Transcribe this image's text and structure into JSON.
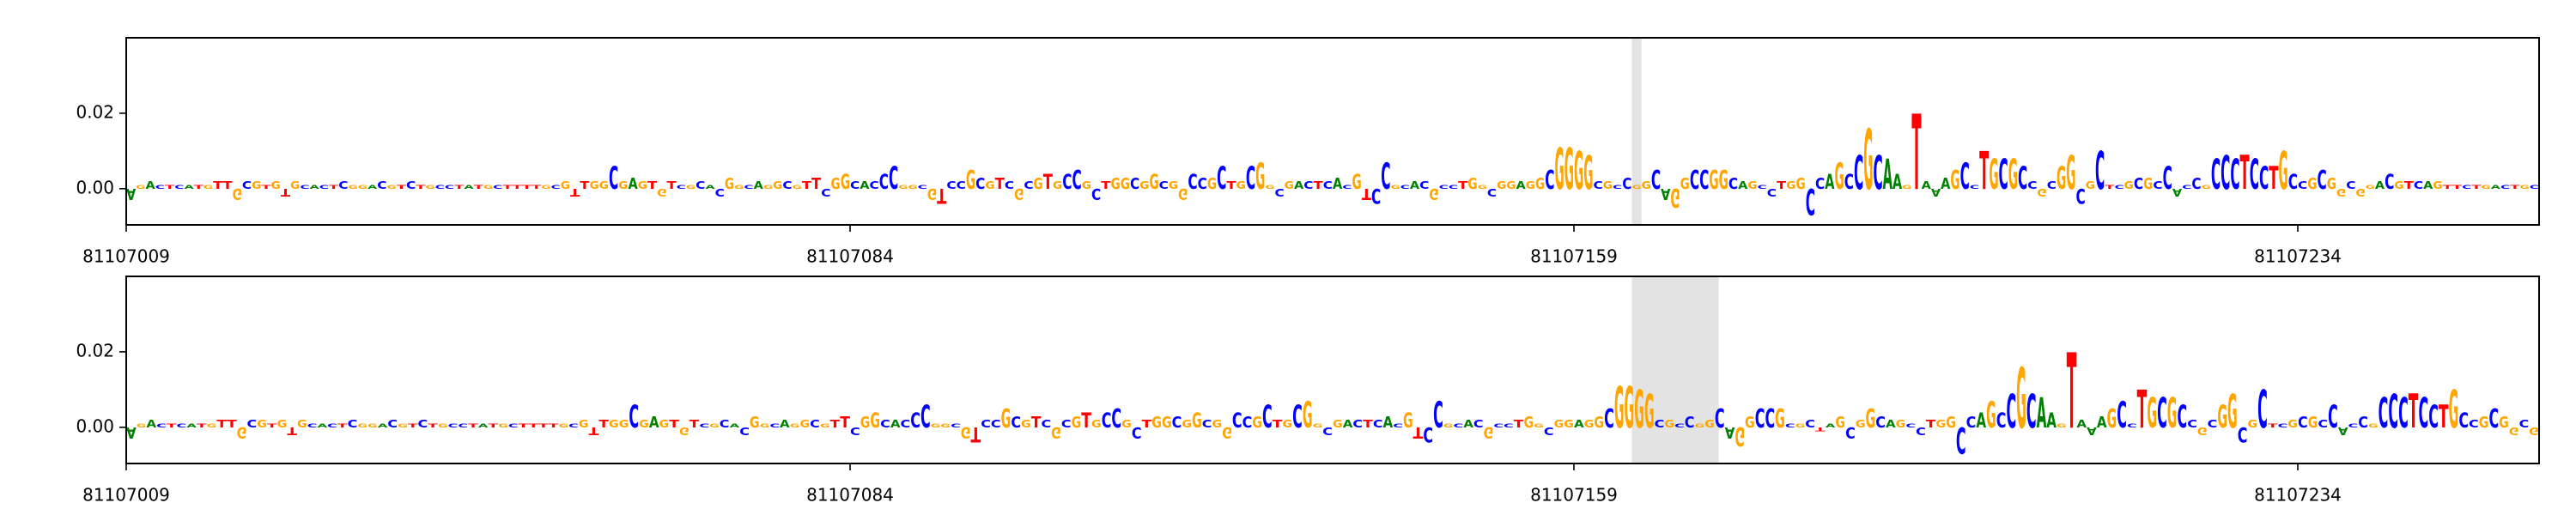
{
  "chart_data": [
    {
      "type": "logo",
      "sequence": "AGACTCATGTTGCGTGTGCACTCGGACGTCTGCCTATGCTTTTGCGTTGGCGAGTGTCGCACGGCAGGCGTTCGGCACCCGGCGTCCGCGTCGCGTGCCGCTGGCGGCGGCCGCTGCGGCGACTCACGTCCGCACGCCTGGCGGAGGCGGGGCGCCGGCAGGCCGGCAGCCTGGCCAGCCGCAAGTAAAGCCTGCGCCGCGGCGCTCGCGCCACCGCCCTCCTGCCGCGGCGGACGTCAGTTCTGACTGC",
      "values": [
        -0.003,
        0.001,
        0.002,
        0.001,
        0.001,
        0.001,
        0.001,
        0.001,
        0.001,
        0.002,
        0.002,
        -0.003,
        0.002,
        0.002,
        0.001,
        0.002,
        -0.002,
        0.002,
        0.001,
        0.001,
        0.001,
        0.001,
        0.002,
        0.001,
        0.001,
        0.001,
        0.002,
        0.001,
        0.001,
        0.002,
        0.001,
        0.001,
        0.001,
        0.001,
        0.001,
        0.001,
        0.001,
        0.001,
        0.001,
        0.001,
        0.001,
        0.001,
        0.001,
        0.001,
        0.001,
        0.002,
        -0.002,
        0.002,
        0.002,
        0.002,
        0.006,
        0.002,
        0.003,
        0.002,
        0.002,
        -0.002,
        0.002,
        0.001,
        0.001,
        0.002,
        0.001,
        -0.002,
        0.003,
        0.001,
        0.001,
        0.002,
        0.001,
        0.002,
        0.002,
        0.001,
        0.002,
        0.003,
        -0.002,
        0.003,
        0.004,
        0.002,
        0.002,
        0.002,
        0.004,
        0.006,
        0.001,
        0.001,
        0.001,
        -0.003,
        -0.004,
        0.002,
        0.002,
        0.005,
        0.003,
        0.002,
        0.003,
        0.002,
        -0.003,
        0.002,
        0.003,
        0.004,
        0.002,
        0.004,
        0.005,
        0.002,
        -0.003,
        0.002,
        0.003,
        0.003,
        0.003,
        0.002,
        0.004,
        0.002,
        0.002,
        -0.003,
        0.004,
        0.003,
        0.003,
        0.006,
        0.002,
        0.002,
        0.006,
        0.007,
        0.001,
        -0.002,
        0.002,
        0.002,
        0.002,
        0.002,
        0.002,
        0.003,
        0.001,
        0.004,
        -0.003,
        -0.004,
        0.007,
        0.001,
        0.001,
        0.002,
        0.002,
        -0.003,
        0.001,
        0.001,
        0.002,
        0.003,
        0.001,
        -0.002,
        0.002,
        0.002,
        0.002,
        0.002,
        0.003,
        0.005,
        0.011,
        0.011,
        0.01,
        0.009,
        0.002,
        0.002,
        0.001,
        0.003,
        0.001,
        0.002,
        0.005,
        -0.003,
        -0.005,
        0.003,
        0.005,
        0.005,
        0.005,
        0.005,
        0.003,
        0.002,
        0.002,
        0.001,
        -0.002,
        0.002,
        0.002,
        0.003,
        -0.007,
        0.003,
        0.004,
        0.007,
        0.004,
        0.009,
        0.016,
        0.009,
        0.008,
        0.004,
        0.001,
        0.02,
        0.002,
        -0.002,
        0.003,
        0.005,
        0.007,
        0.001,
        0.01,
        0.008,
        0.008,
        0.008,
        0.006,
        0.002,
        -0.002,
        0.002,
        0.006,
        0.009,
        -0.004,
        0.002,
        0.01,
        0.001,
        0.001,
        0.002,
        0.003,
        0.003,
        0.002,
        0.006,
        -0.002,
        0.001,
        0.003,
        0.001,
        0.008,
        0.009,
        0.008,
        0.009,
        0.008,
        0.006,
        0.006,
        0.01,
        0.004,
        0.002,
        0.003,
        0.005,
        0.003,
        -0.002,
        0.002,
        -0.002,
        0.001,
        0.002,
        0.004,
        0.002,
        0.002,
        0.002,
        0.002,
        0.002,
        0.001,
        0.001,
        0.001,
        0.001,
        0.001,
        0.001,
        0.001,
        0.001,
        0.001,
        0.001
      ],
      "highlight": [
        81107165,
        81107166
      ],
      "colors": {
        "A": "#008000",
        "C": "#0000ff",
        "G": "#ffa500",
        "T": "#ff0000"
      },
      "xlim": [
        81107009,
        81107259
      ],
      "xticks": [
        81107009,
        81107084,
        81107159,
        81107234
      ],
      "ylim": [
        -0.0096,
        0.04
      ],
      "yticks": [
        {
          "value": 0,
          "label": "0.00"
        },
        {
          "value": 0.02,
          "label": "0.02"
        }
      ]
    },
    {
      "type": "logo",
      "sequence": "AGACTCATGTTGCGTGTGCACTCGGACGTCTGCCTATGCTTTTGCGTTGGCGAGTGTCGCACGGCAGGCGTTCGGCACCCGGCGTCCGCGTCGCGTGCCGCTGGCGGCGGCCGCTGCGGCGACTCACGTCCGCACGCCTGGCGGAGGCGGGGCGCCGGCAGGCCGCGCTAGCGGCAGCCTGGCCAGCCGCAAGTAAAGCCTGCGCCGCGGCGCTCGCGCCACCGCCCTCCTGCCGCGGCGGACGTCAGTT",
      "values": [
        -0.003,
        0.001,
        0.002,
        0.001,
        0.001,
        0.001,
        0.001,
        0.001,
        0.001,
        0.002,
        0.002,
        -0.003,
        0.002,
        0.002,
        0.001,
        0.002,
        -0.002,
        0.002,
        0.001,
        0.001,
        0.001,
        0.001,
        0.002,
        0.001,
        0.001,
        0.001,
        0.002,
        0.001,
        0.001,
        0.002,
        0.001,
        0.001,
        0.001,
        0.001,
        0.001,
        0.001,
        0.001,
        0.001,
        0.001,
        0.001,
        0.001,
        0.001,
        0.001,
        0.001,
        0.001,
        0.002,
        -0.002,
        0.002,
        0.002,
        0.002,
        0.006,
        0.002,
        0.003,
        0.002,
        0.002,
        -0.002,
        0.002,
        0.001,
        0.001,
        0.002,
        0.001,
        -0.002,
        0.003,
        0.001,
        0.001,
        0.002,
        0.001,
        0.002,
        0.002,
        0.001,
        0.002,
        0.003,
        -0.002,
        0.003,
        0.004,
        0.002,
        0.002,
        0.002,
        0.004,
        0.006,
        0.001,
        0.001,
        0.001,
        -0.003,
        -0.004,
        0.002,
        0.002,
        0.005,
        0.003,
        0.002,
        0.003,
        0.002,
        -0.003,
        0.002,
        0.003,
        0.004,
        0.002,
        0.004,
        0.005,
        0.002,
        -0.003,
        0.002,
        0.003,
        0.003,
        0.003,
        0.002,
        0.004,
        0.002,
        0.002,
        -0.003,
        0.004,
        0.003,
        0.003,
        0.006,
        0.002,
        0.002,
        0.006,
        0.007,
        0.001,
        -0.002,
        0.002,
        0.002,
        0.002,
        0.002,
        0.002,
        0.003,
        0.001,
        0.004,
        -0.003,
        -0.004,
        0.007,
        0.001,
        0.001,
        0.002,
        0.002,
        -0.003,
        0.001,
        0.001,
        0.002,
        0.003,
        0.001,
        -0.002,
        0.002,
        0.002,
        0.002,
        0.002,
        0.003,
        0.005,
        0.011,
        0.011,
        0.01,
        0.009,
        0.002,
        0.002,
        0.001,
        0.003,
        0.001,
        0.002,
        0.005,
        -0.003,
        -0.005,
        0.003,
        0.005,
        0.005,
        0.005,
        0.001,
        0.001,
        0.002,
        -0.001,
        0.001,
        0.003,
        -0.003,
        0.002,
        0.005,
        0.003,
        0.002,
        0.002,
        0.001,
        -0.002,
        0.002,
        0.002,
        0.003,
        -0.007,
        0.003,
        0.004,
        0.007,
        0.004,
        0.009,
        0.016,
        0.009,
        0.008,
        0.004,
        0.001,
        0.02,
        0.002,
        -0.002,
        0.003,
        0.005,
        0.007,
        0.001,
        0.01,
        0.008,
        0.008,
        0.008,
        0.006,
        0.002,
        -0.002,
        0.002,
        0.006,
        0.009,
        -0.004,
        0.002,
        0.01,
        0.001,
        0.001,
        0.002,
        0.003,
        0.003,
        0.002,
        0.006,
        -0.002,
        0.001,
        0.003,
        0.001,
        0.008,
        0.009,
        0.008,
        0.009,
        0.008,
        0.006,
        0.006,
        0.01,
        0.004,
        0.002,
        0.003,
        0.005,
        0.003,
        -0.002,
        0.002,
        -0.002
      ],
      "highlight": [
        81107165,
        81107174
      ],
      "colors": {
        "A": "#008000",
        "C": "#0000ff",
        "G": "#ffa500",
        "T": "#ff0000"
      },
      "xlim": [
        81107009,
        81107259
      ],
      "xticks": [
        81107009,
        81107084,
        81107159,
        81107234
      ],
      "ylim": [
        -0.0096,
        0.04
      ],
      "yticks": [
        {
          "value": 0,
          "label": "0.00"
        },
        {
          "value": 0.02,
          "label": "0.02"
        }
      ]
    }
  ]
}
